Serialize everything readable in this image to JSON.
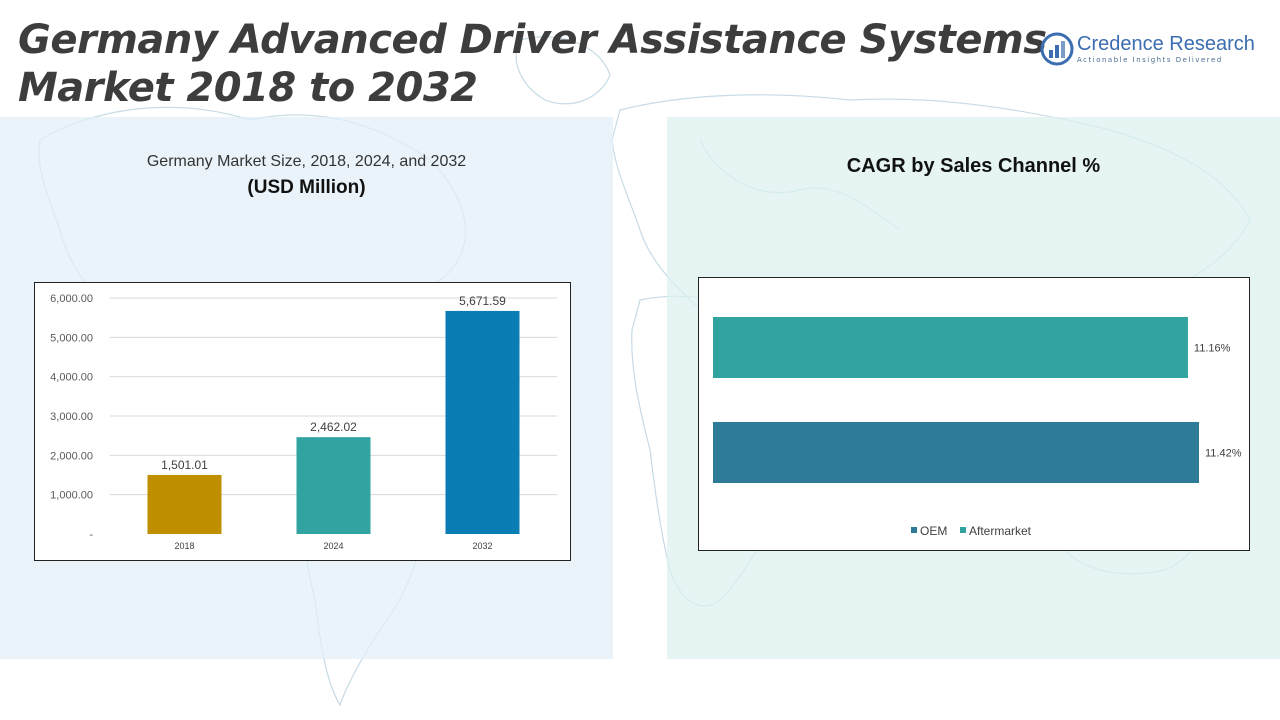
{
  "page": {
    "title_line1": "Germany Advanced Driver Assistance Systems",
    "title_line2": "Market 2018 to 2032"
  },
  "brand": {
    "name": "Credence Research",
    "tagline": "Actionable Insights Delivered",
    "logo_icon": "bar-chart-circle-icon",
    "color": "#3b6db0"
  },
  "left_panel": {
    "title": "Germany Market Size, 2018, 2024, and 2032",
    "unit": "(USD Million)"
  },
  "right_panel": {
    "title": "CAGR by Sales Channel %"
  },
  "chart_data": [
    {
      "type": "bar",
      "title": "Germany Market Size, 2018, 2024, and 2032",
      "subtitle": "(USD Million)",
      "categories": [
        "2018",
        "2024",
        "2032"
      ],
      "values": [
        1501.01,
        2462.02,
        5671.59
      ],
      "value_labels": [
        "1,501.01",
        "2,462.02",
        "5,671.59"
      ],
      "colors": [
        "#bf8f00",
        "#31a3a1",
        "#0b7db5"
      ],
      "ylim": [
        0,
        6000
      ],
      "yticks": [
        0,
        1000,
        2000,
        3000,
        4000,
        5000,
        6000
      ],
      "ytick_labels": [
        "-",
        "1,000.00",
        "2,000.00",
        "3,000.00",
        "4,000.00",
        "5,000.00",
        "6,000.00"
      ],
      "grid": true,
      "legend": "none"
    },
    {
      "type": "bar",
      "orientation": "horizontal",
      "title": "CAGR by Sales Channel %",
      "categories": [
        "Aftermarket",
        "OEM"
      ],
      "values": [
        11.16,
        11.42
      ],
      "value_labels": [
        "11.16%",
        "11.42%"
      ],
      "colors": [
        "#31a3a1",
        "#2e7b98"
      ],
      "legend": "bottom",
      "legend_entries": [
        {
          "name": "OEM",
          "color": "#2e7b98"
        },
        {
          "name": "Aftermarket",
          "color": "#31a3a1"
        }
      ]
    }
  ]
}
